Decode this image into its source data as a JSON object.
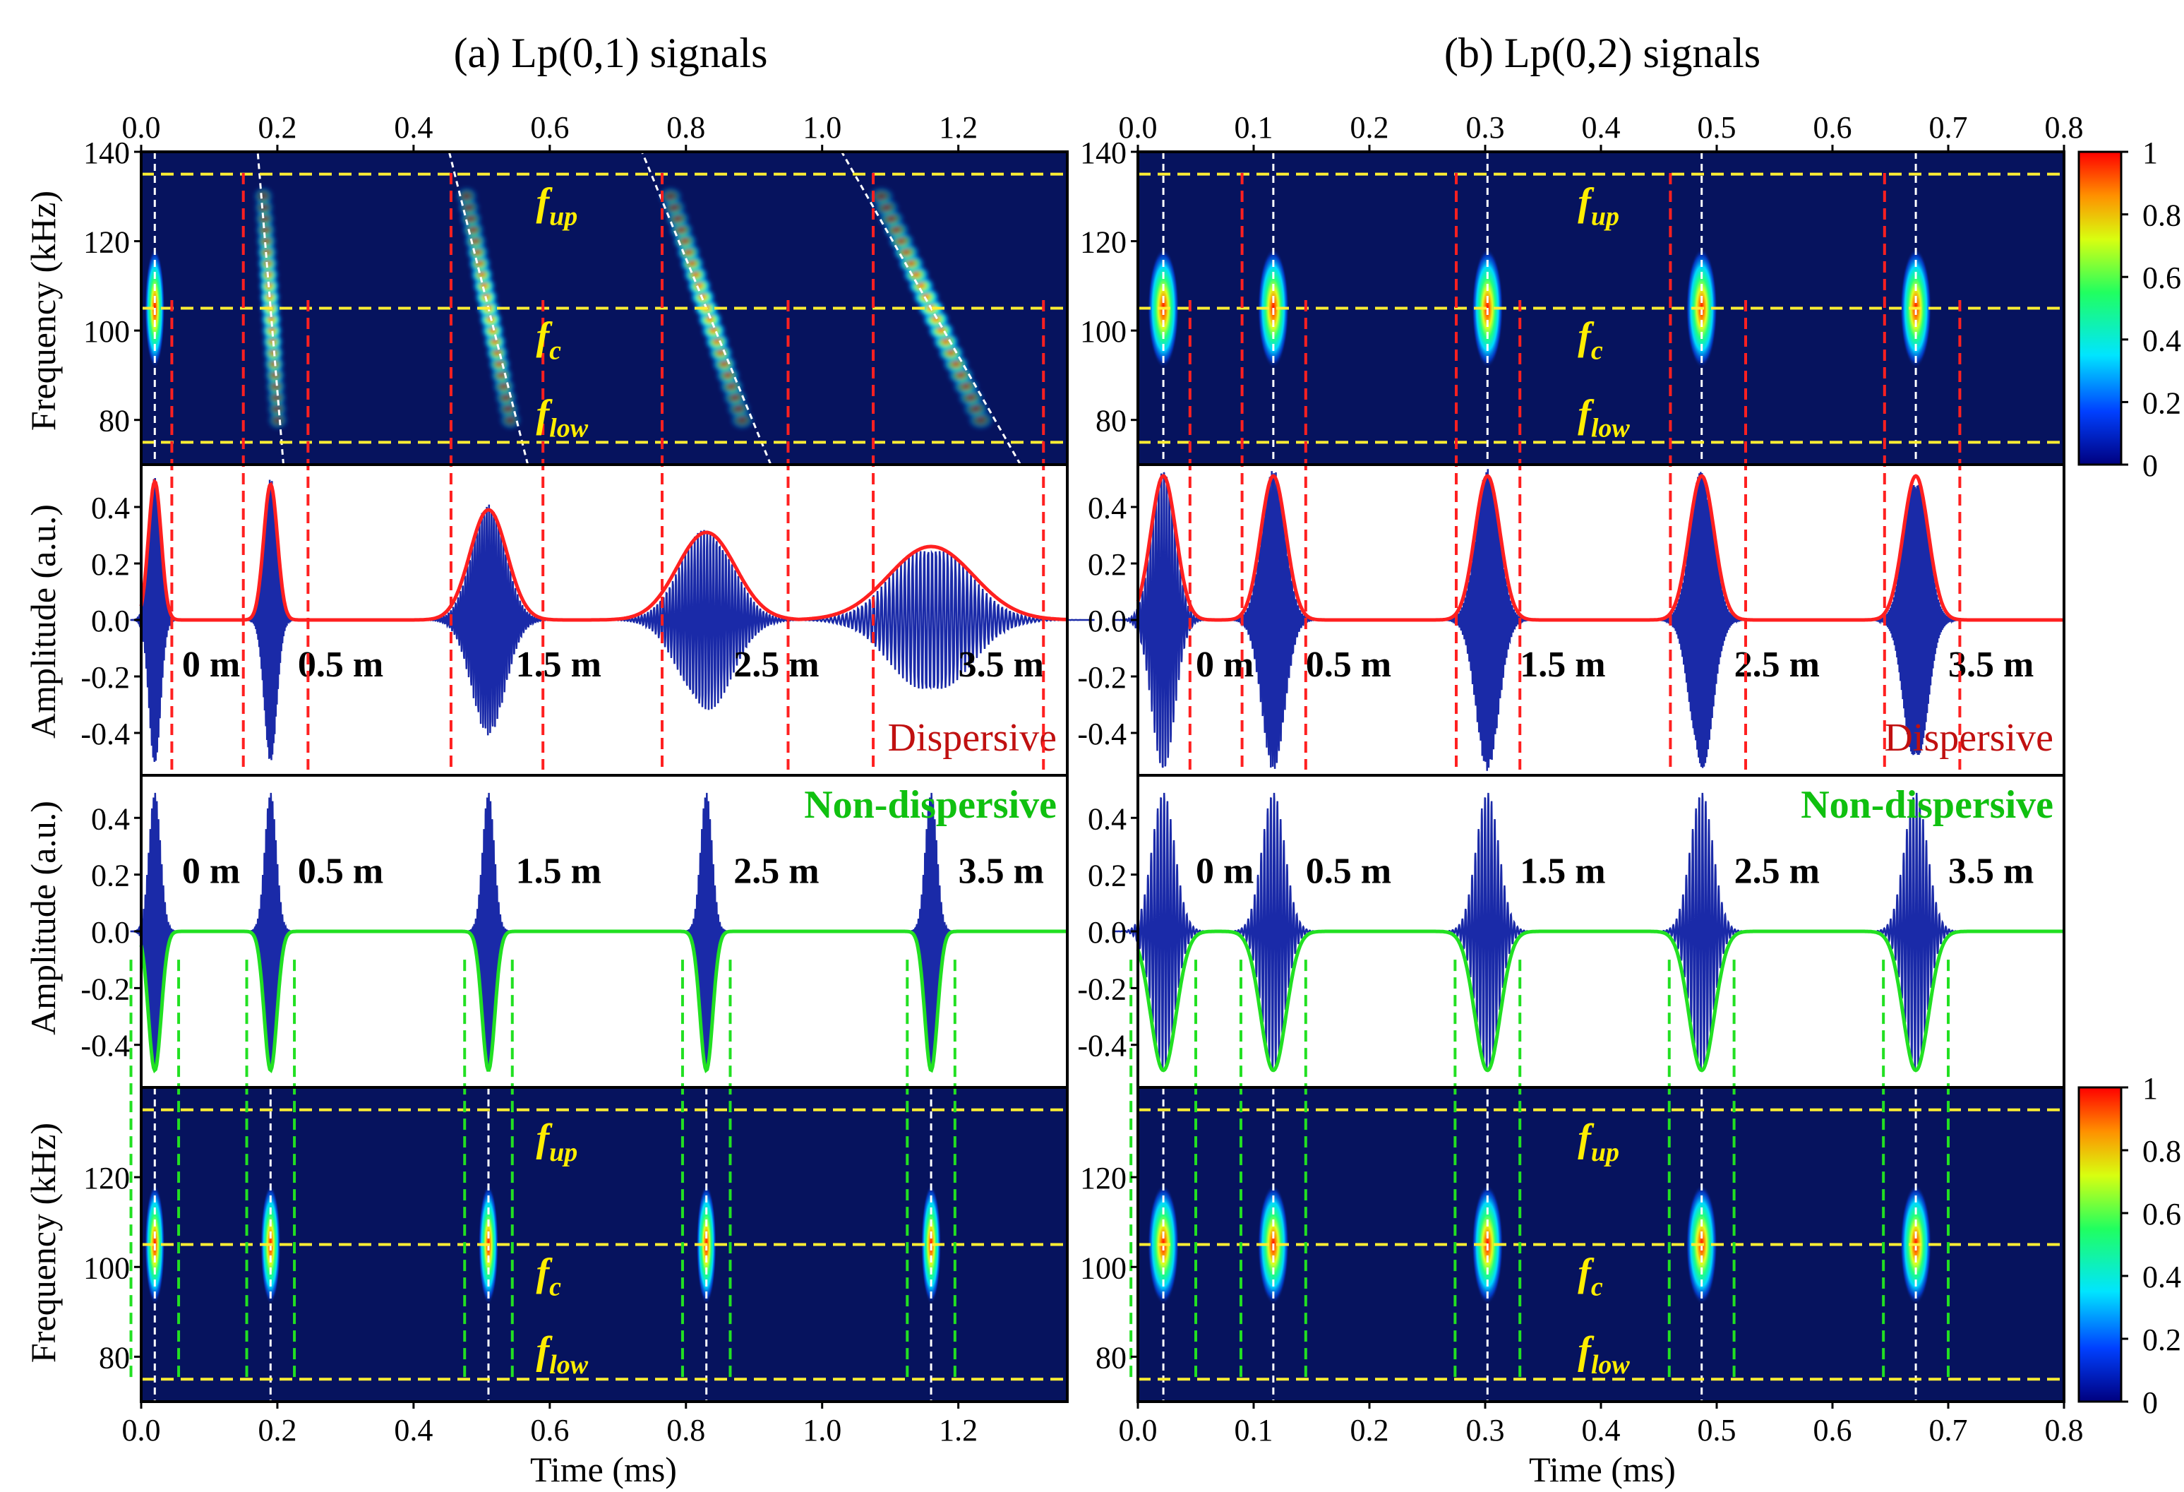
{
  "titles": {
    "left": "(a) Lp(0,1) signals",
    "right": "(b) Lp(0,2) signals"
  },
  "colors": {
    "background_map": "#06135e",
    "red_envelope": "#ff2020",
    "green_envelope": "#22e022",
    "waveform": "#1a2aa8",
    "yellow_line": "#ffee33",
    "label_yellow": "#ffee00",
    "dispersive_label": "#c01010",
    "nondispersive_label": "#10c010"
  },
  "colormap": [
    "#00007f",
    "#0040ff",
    "#00e5ff",
    "#20ff60",
    "#d8ff10",
    "#ff9000",
    "#ff0000"
  ],
  "chart_data": [
    {
      "type": "heatmap",
      "id": "a_tf_dispersive",
      "ylabel": "Frequency (kHz)",
      "xlim": [
        0,
        1.36
      ],
      "ylim": [
        70,
        140
      ],
      "xticks": [
        "0.0",
        "0.2",
        "0.4",
        "0.6",
        "0.8",
        "1.0",
        "1.2"
      ],
      "xtick_values": [
        0,
        0.2,
        0.4,
        0.6,
        0.8,
        1.0,
        1.2
      ],
      "yticks": [
        "140",
        "120",
        "100",
        "80"
      ],
      "ytick_values": [
        140,
        120,
        100,
        80
      ],
      "freq_lines": {
        "f_up": 135,
        "f_c": 105,
        "f_low": 75
      },
      "freq_labels": {
        "up": "up",
        "c": "c",
        "low": "low",
        "f": "f"
      },
      "packets_t_center": [
        0.02,
        0.19,
        0.51,
        0.83,
        1.16
      ],
      "packets_dispersion": [
        0.004,
        0.018,
        0.055,
        0.09,
        0.125
      ],
      "red_window_edges": [
        [
          0.0,
          0.045
        ],
        [
          0.15,
          0.245
        ],
        [
          0.455,
          0.59
        ],
        [
          0.765,
          0.95
        ],
        [
          1.075,
          1.325
        ]
      ]
    },
    {
      "type": "line",
      "id": "a_dispersive",
      "ylabel": "Amplitude (a.u.)",
      "ylim": [
        -0.55,
        0.55
      ],
      "yticks": [
        "0.4",
        "0.2",
        "0.0",
        "-0.2",
        "-0.4"
      ],
      "ytick_values": [
        0.4,
        0.2,
        0.0,
        -0.2,
        -0.4
      ],
      "envelope_peaks": [
        0.49,
        0.48,
        0.39,
        0.31,
        0.26
      ],
      "envelope_widths": [
        0.012,
        0.013,
        0.035,
        0.055,
        0.08
      ],
      "distance_labels": [
        "0 m",
        "0.5 m",
        "1.5 m",
        "2.5 m",
        "3.5 m"
      ],
      "distance_label_t": [
        0.06,
        0.23,
        0.55,
        0.87,
        1.2
      ],
      "corner_label": "Dispersive"
    },
    {
      "type": "line",
      "id": "a_nondispersive",
      "ylabel": "Amplitude (a.u.)",
      "ylim": [
        -0.55,
        0.55
      ],
      "yticks": [
        "0.4",
        "0.2",
        "0.0",
        "-0.2",
        "-0.4"
      ],
      "ytick_values": [
        0.4,
        0.2,
        0.0,
        -0.2,
        -0.4
      ],
      "envelope_peak": -0.49,
      "distance_labels": [
        "0 m",
        "0.5 m",
        "1.5 m",
        "2.5 m",
        "3.5 m"
      ],
      "corner_label": "Non-dispersive"
    },
    {
      "type": "heatmap",
      "id": "a_tf_nondispersive",
      "ylabel": "Frequency (kHz)",
      "xlabel": "Time (ms)",
      "xticks": [
        "0.0",
        "0.2",
        "0.4",
        "0.6",
        "0.8",
        "1.0",
        "1.2"
      ],
      "yticks": [
        "120",
        "100",
        "80"
      ],
      "ytick_values": [
        120,
        100,
        80
      ]
    },
    {
      "type": "heatmap",
      "id": "b_tf_dispersive",
      "xlim": [
        0,
        0.8
      ],
      "ylim": [
        70,
        140
      ],
      "xticks": [
        "0.0",
        "0.1",
        "0.2",
        "0.3",
        "0.4",
        "0.5",
        "0.6",
        "0.7",
        "0.8"
      ],
      "xtick_values": [
        0,
        0.1,
        0.2,
        0.3,
        0.4,
        0.5,
        0.6,
        0.7,
        0.8
      ],
      "yticks": [
        "140",
        "120",
        "100",
        "80"
      ],
      "packets_t_center": [
        0.022,
        0.117,
        0.302,
        0.487,
        0.672
      ],
      "red_window_edges": [
        [
          0.0,
          0.045
        ],
        [
          0.09,
          0.145
        ],
        [
          0.275,
          0.33
        ],
        [
          0.46,
          0.525
        ],
        [
          0.645,
          0.71
        ]
      ]
    },
    {
      "type": "line",
      "id": "b_dispersive",
      "envelope_peaks": [
        0.51,
        0.51,
        0.51,
        0.51,
        0.51
      ],
      "distance_labels": [
        "0 m",
        "0.5 m",
        "1.5 m",
        "2.5 m",
        "3.5 m"
      ],
      "distance_label_t": [
        0.05,
        0.145,
        0.33,
        0.515,
        0.7
      ],
      "corner_label": "Dispersive"
    },
    {
      "type": "line",
      "id": "b_nondispersive",
      "envelope_peak": -0.49,
      "distance_labels": [
        "0 m",
        "0.5 m",
        "1.5 m",
        "2.5 m",
        "3.5 m"
      ],
      "corner_label": "Non-dispersive"
    },
    {
      "type": "heatmap",
      "id": "b_tf_nondispersive",
      "xlabel": "Time (ms)",
      "xticks": [
        "0.0",
        "0.1",
        "0.2",
        "0.3",
        "0.4",
        "0.5",
        "0.6",
        "0.7",
        "0.8"
      ]
    }
  ],
  "colorbar": {
    "ticks": [
      "1",
      "0.8",
      "0.6",
      "0.4",
      "0.2",
      "0"
    ],
    "tick_values": [
      1,
      0.8,
      0.6,
      0.4,
      0.2,
      0
    ]
  }
}
